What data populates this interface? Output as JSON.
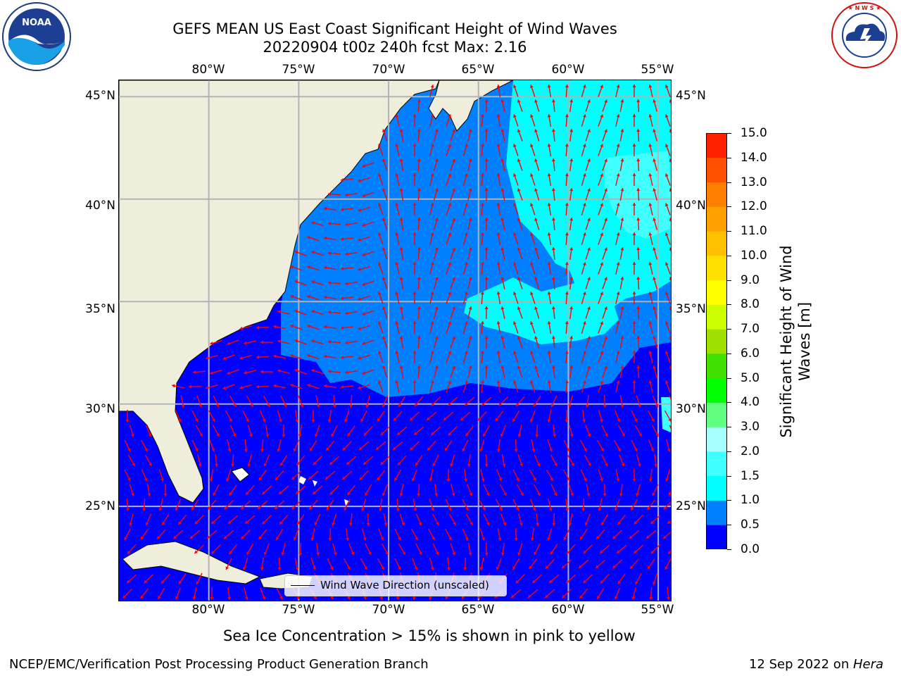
{
  "header": {
    "title_line1": "GEFS MEAN US East Coast Significant Height of Wind Waves",
    "title_line2": "20220904 t00z 240h fcst   Max: 2.16"
  },
  "logos": {
    "left": {
      "name": "NOAA",
      "text": "NOAA",
      "ring_text": "NATIONAL OCEANIC AND ATMOSPHERIC ADMINISTRATION",
      "dept_text": "U.S. DEPARTMENT OF COMMERCE"
    },
    "right": {
      "name": "National Weather Service",
      "ring_text": "NATIONAL WEATHER SERVICE"
    }
  },
  "map": {
    "lon_labels": [
      "80°W",
      "75°W",
      "70°W",
      "65°W",
      "60°W",
      "55°W"
    ],
    "lat_labels": [
      "45°N",
      "40°N",
      "35°N",
      "30°N",
      "25°N"
    ],
    "extent": {
      "lon_min": -85,
      "lon_max": -54.3,
      "lat_min": 20.4,
      "lat_max": 45.8
    },
    "colors": {
      "land": "#efeedc",
      "grid": "#b3b3b3",
      "arrow": "#ff0000",
      "coast": "#000000"
    },
    "legend_label": "Wind Wave Direction (unscaled)"
  },
  "colorbar": {
    "label": "Significant Height of Wind Waves [m]",
    "label_lines": [
      "Significant Height of Wind",
      "Waves [m]"
    ],
    "ticks": [
      "0.0",
      "0.5",
      "1.0",
      "1.5",
      "2.0",
      "3.0",
      "4.0",
      "5.0",
      "6.0",
      "7.0",
      "8.0",
      "9.0",
      "10.0",
      "11.0",
      "12.0",
      "13.0",
      "14.0",
      "15.0"
    ],
    "colors": [
      "#0000ff",
      "#0080ff",
      "#00ffff",
      "#40ffff",
      "#a8ffff",
      "#60ff80",
      "#00ff00",
      "#40e000",
      "#a0e000",
      "#ccff00",
      "#ffff00",
      "#ffe000",
      "#ffc000",
      "#ffa000",
      "#ff8000",
      "#ff5000",
      "#ff2000",
      "#ff0000"
    ]
  },
  "chart_data": {
    "type": "heatmap",
    "title": "GEFS MEAN US East Coast Significant Height of Wind Waves",
    "subtitle": "20220904 t00z 240h fcst   Max: 2.16",
    "xlabel": "",
    "ylabel": "",
    "x_ticks": [
      "80°W",
      "75°W",
      "70°W",
      "65°W",
      "60°W",
      "55°W"
    ],
    "y_ticks": [
      "45°N",
      "40°N",
      "35°N",
      "30°N",
      "25°N"
    ],
    "xlim": [
      -85,
      -54.3
    ],
    "ylim": [
      20.4,
      45.8
    ],
    "grid": true,
    "colorbar_label": "Significant Height of Wind Waves [m]",
    "levels": [
      0.0,
      0.5,
      1.0,
      1.5,
      2.0,
      3.0,
      4.0,
      5.0,
      6.0,
      7.0,
      8.0,
      9.0,
      10.0,
      11.0,
      12.0,
      13.0,
      14.0,
      15.0
    ],
    "max": 2.16,
    "legend": [
      "Wind Wave Direction (unscaled)"
    ],
    "legend_placement": "lower-center"
  },
  "footer": {
    "note": "Sea Ice Concentration > 15% is shown in pink to yellow",
    "credit": "NCEP/EMC/Verification Post Processing Product Generation Branch",
    "date_prefix": "12 Sep 2022 on ",
    "machine": "Hera"
  }
}
